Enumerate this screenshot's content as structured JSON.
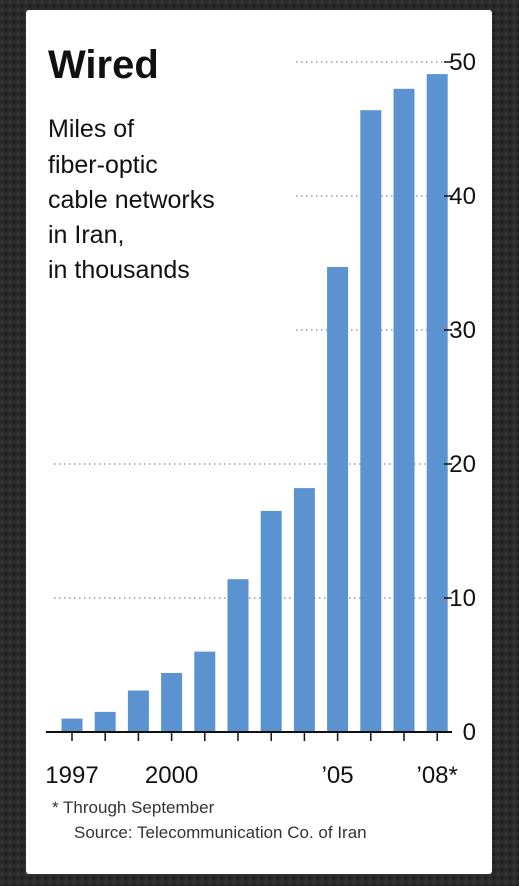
{
  "chart_data": {
    "type": "bar",
    "title": "Wired",
    "subtitle_lines": [
      "Miles of",
      "fiber-optic",
      "cable networks",
      "in Iran,",
      "in thousands"
    ],
    "categories": [
      "1997",
      "1998",
      "1999",
      "2000",
      "2001",
      "2002",
      "2003",
      "2004",
      "2005",
      "2006",
      "2007",
      "2008"
    ],
    "x_tick_labels": [
      "1997",
      "",
      "",
      "2000",
      "",
      "",
      "",
      "",
      "’05",
      "",
      "",
      "’08*"
    ],
    "values": [
      1.0,
      1.5,
      3.1,
      4.4,
      6.0,
      11.4,
      16.5,
      18.2,
      34.7,
      46.4,
      48.0,
      49.1
    ],
    "ylim": [
      0,
      50
    ],
    "y_ticks": [
      0,
      10,
      20,
      30,
      40,
      50
    ],
    "y_axis_side": "right",
    "grid": "dotted horizontal",
    "bar_color": "#5b93d1",
    "footnote": "* Through September",
    "source": "Source: Telecommunication Co. of Iran"
  }
}
